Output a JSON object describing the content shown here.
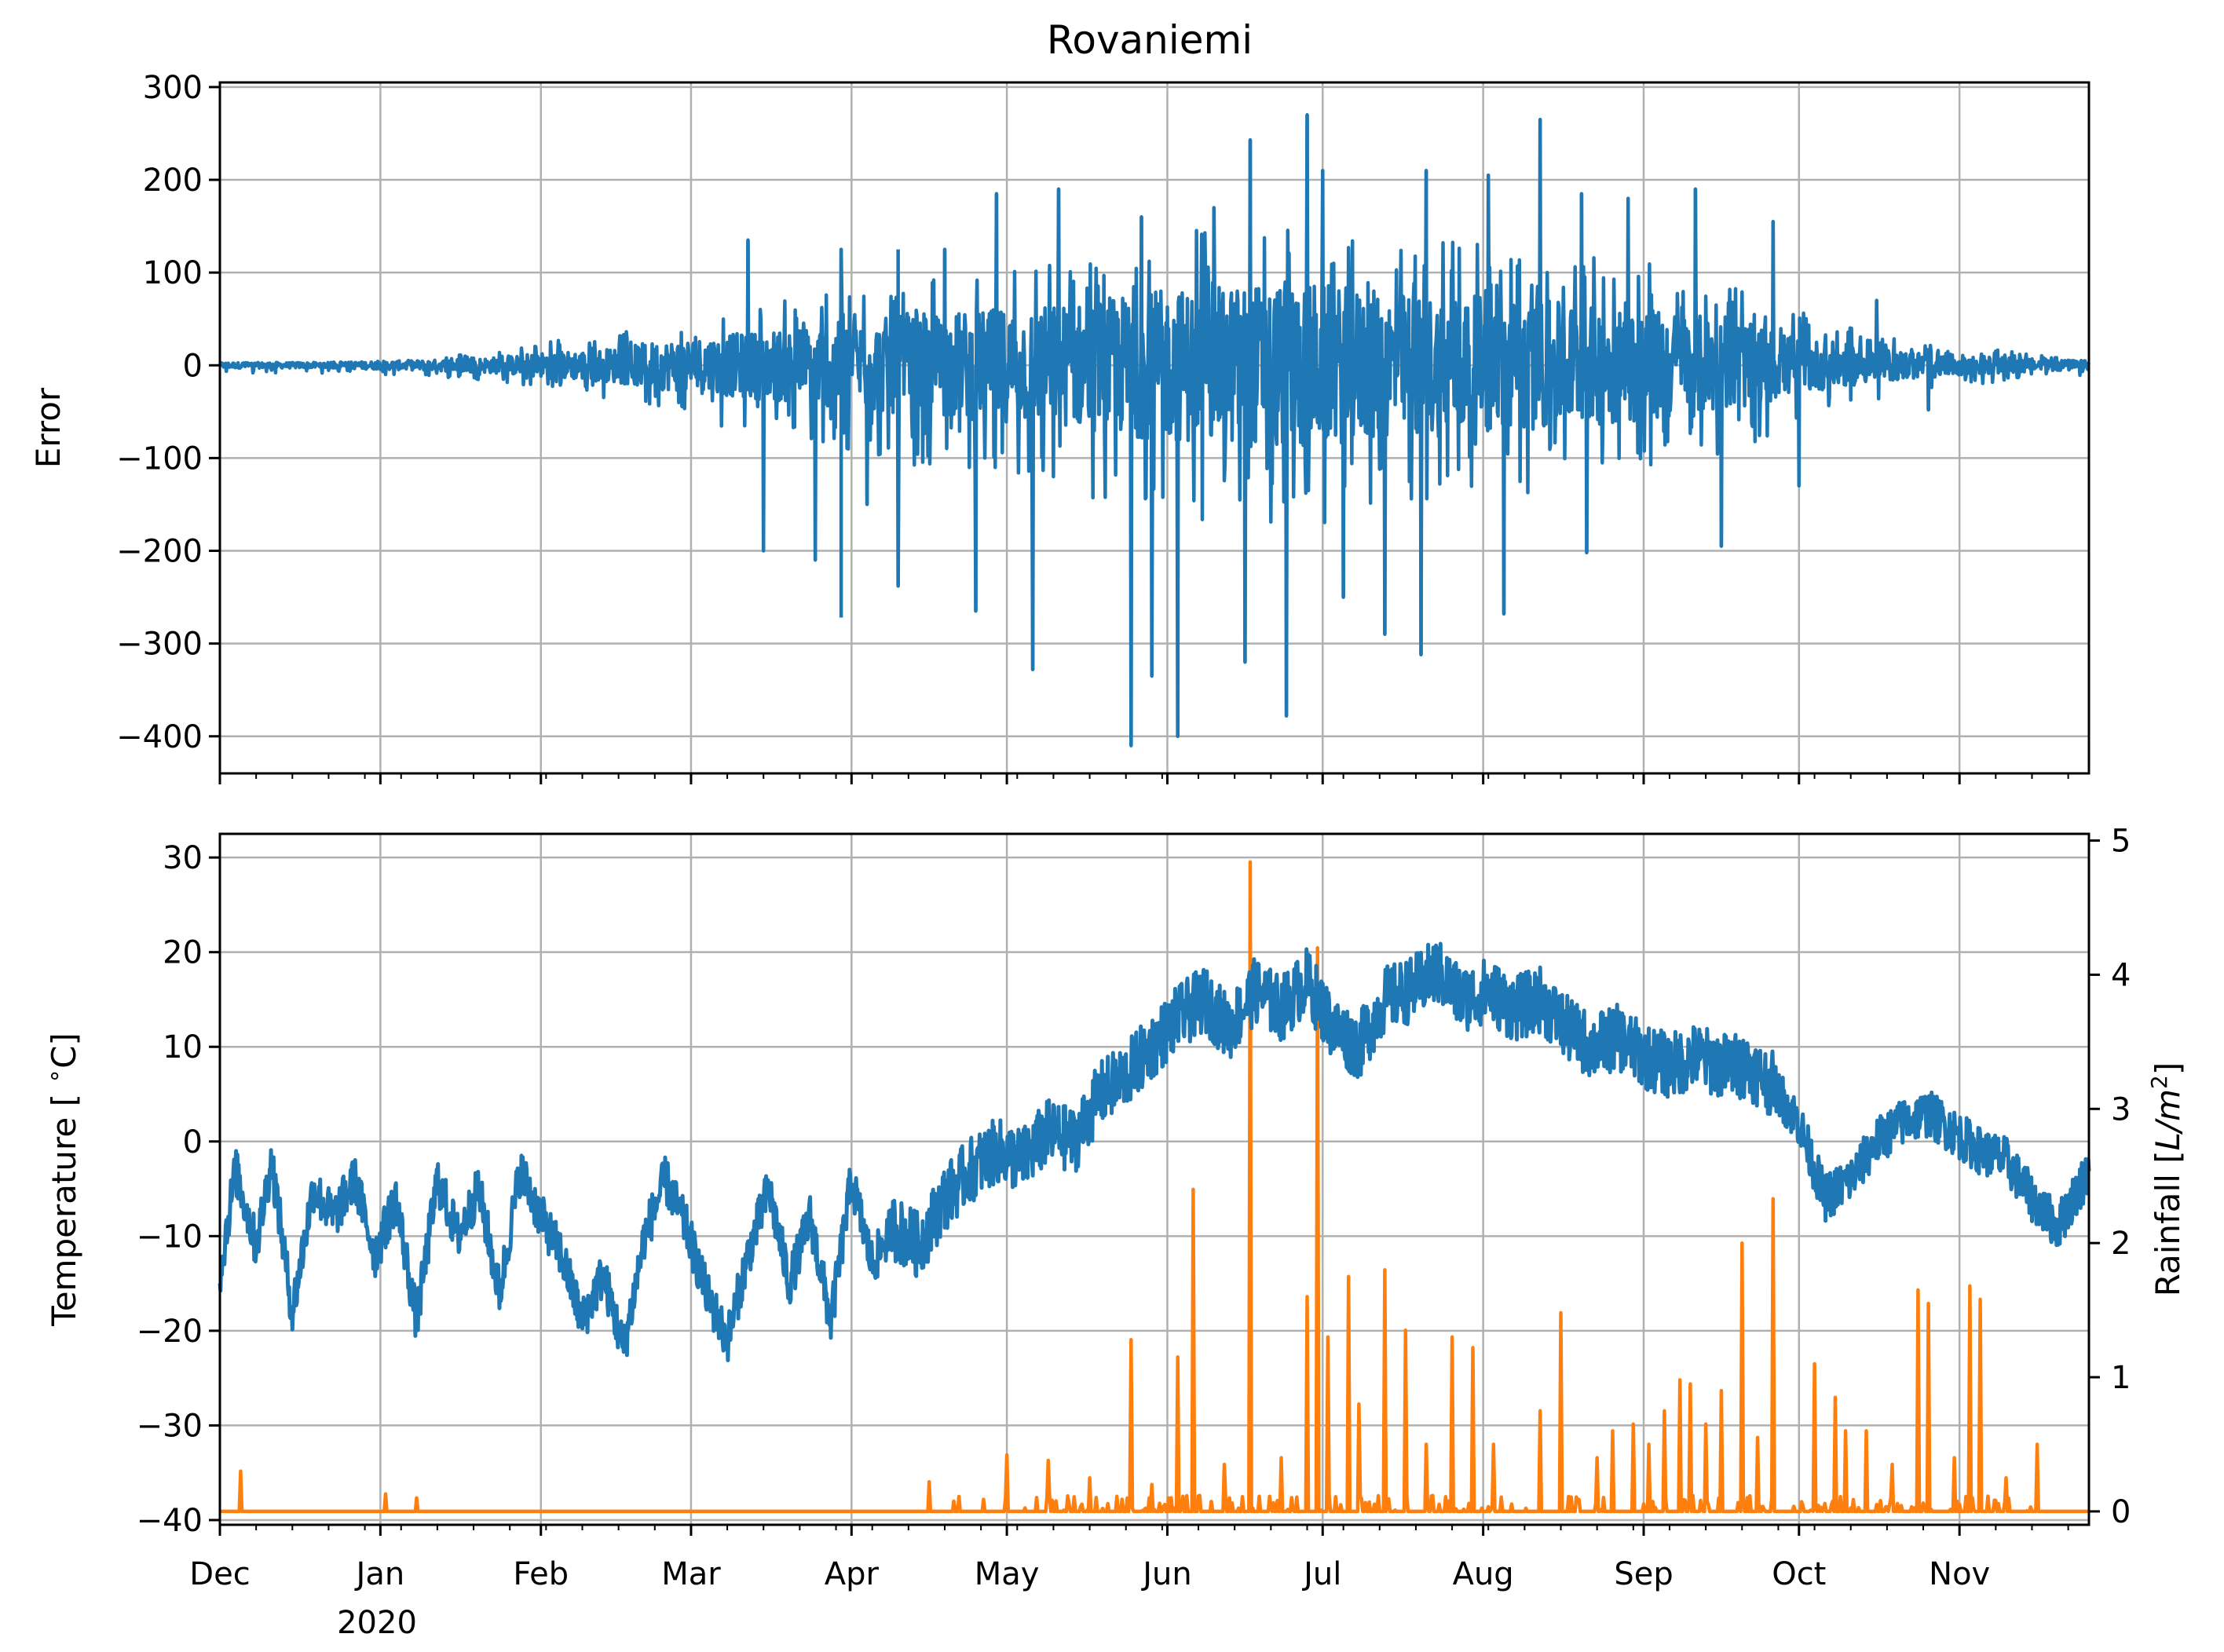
{
  "figure": {
    "title": "Rovaniemi",
    "x_tick_labels": [
      "Dec",
      "Jan",
      "Feb",
      "Mar",
      "Apr",
      "May",
      "Jun",
      "Jul",
      "Aug",
      "Sep",
      "Oct",
      "Nov"
    ],
    "x_year_label": "2020"
  },
  "chart_data": [
    {
      "type": "line",
      "title": "Rovaniemi",
      "xlabel": "",
      "ylabel": "Error",
      "ylim": [
        -440,
        305
      ],
      "yticks": [
        300,
        200,
        100,
        0,
        -100,
        -200,
        -300,
        -400
      ],
      "ytick_labels": [
        "300",
        "200",
        "100",
        "0",
        "−100",
        "−200",
        "−300",
        "−400"
      ],
      "x_range_days": [
        0,
        361
      ],
      "grid": true,
      "series": [
        {
          "name": "Error",
          "color": "#1f77b4",
          "envelope": {
            "day": [
              0,
              20,
              40,
              55,
              62,
              75,
              85,
              100,
              120,
              135,
              150,
              165,
              175,
              185,
              195,
              205,
              210,
              215,
              225,
              235,
              245,
              255,
              265,
              275,
              285,
              295,
              305,
              320,
              335,
              350,
              361
            ],
            "upper": [
              3,
              3,
              8,
              15,
              25,
              30,
              45,
              55,
              80,
              95,
              100,
              110,
              130,
              140,
              150,
              160,
              165,
              150,
              140,
              135,
              130,
              125,
              115,
              110,
              95,
              80,
              55,
              30,
              20,
              12,
              8
            ],
            "lower": [
              -8,
              -8,
              -12,
              -18,
              -25,
              -35,
              -50,
              -70,
              -90,
              -105,
              -120,
              -135,
              -150,
              -160,
              -165,
              -170,
              -170,
              -160,
              -150,
              -145,
              -140,
              -130,
              -120,
              -115,
              -105,
              -85,
              -55,
              -35,
              -22,
              -14,
              -10
            ]
          },
          "spikes": [
            {
              "day": 105,
              "value": -200
            },
            {
              "day": 102,
              "value": 135
            },
            {
              "day": 115,
              "value": -210
            },
            {
              "day": 120,
              "value": -272
            },
            {
              "day": 120,
              "value": 125
            },
            {
              "day": 125,
              "value": -150
            },
            {
              "day": 131,
              "value": 125
            },
            {
              "day": 131,
              "value": -238
            },
            {
              "day": 140,
              "value": 125
            },
            {
              "day": 146,
              "value": -265
            },
            {
              "day": 150,
              "value": 185
            },
            {
              "day": 157,
              "value": -328
            },
            {
              "day": 162,
              "value": 190
            },
            {
              "day": 176,
              "value": -410
            },
            {
              "day": 178,
              "value": 160
            },
            {
              "day": 180,
              "value": -335
            },
            {
              "day": 185,
              "value": -400
            },
            {
              "day": 192,
              "value": 170
            },
            {
              "day": 198,
              "value": -320
            },
            {
              "day": 199,
              "value": 243
            },
            {
              "day": 206,
              "value": -378
            },
            {
              "day": 210,
              "value": 270
            },
            {
              "day": 213,
              "value": 210
            },
            {
              "day": 217,
              "value": -250
            },
            {
              "day": 225,
              "value": -290
            },
            {
              "day": 232,
              "value": -312
            },
            {
              "day": 233,
              "value": 210
            },
            {
              "day": 245,
              "value": 205
            },
            {
              "day": 248,
              "value": -268
            },
            {
              "day": 255,
              "value": 265
            },
            {
              "day": 263,
              "value": 185
            },
            {
              "day": 264,
              "value": -202
            },
            {
              "day": 272,
              "value": 180
            },
            {
              "day": 285,
              "value": 190
            },
            {
              "day": 290,
              "value": -195
            },
            {
              "day": 300,
              "value": 155
            },
            {
              "day": 305,
              "value": -130
            },
            {
              "day": 320,
              "value": 70
            },
            {
              "day": 330,
              "value": -48
            }
          ]
        }
      ]
    },
    {
      "type": "line",
      "title": "",
      "xlabel": "",
      "ylabel": "Temperature [$^\\circ$C]",
      "y2label": "Rainfall [$L/m^2$]",
      "ylim": [
        -40.5,
        32.5
      ],
      "yticks": [
        30,
        20,
        10,
        0,
        -10,
        -20,
        -30,
        -40
      ],
      "ytick_labels": [
        "30",
        "20",
        "10",
        "0",
        "−10",
        "−20",
        "−30",
        "−40"
      ],
      "y2lim": [
        -0.1,
        5.05
      ],
      "y2ticks": [
        5,
        4,
        3,
        2,
        1,
        0
      ],
      "y2tick_labels": [
        "5",
        "4",
        "3",
        "2",
        "1",
        "0"
      ],
      "x_range_days": [
        0,
        361
      ],
      "grid": true,
      "series": [
        {
          "name": "Temperature",
          "axis": "left",
          "color": "#1f77b4",
          "day": [
            0,
            3,
            7,
            10,
            14,
            18,
            22,
            26,
            30,
            34,
            38,
            42,
            46,
            50,
            54,
            58,
            62,
            66,
            70,
            74,
            78,
            82,
            86,
            90,
            94,
            98,
            102,
            106,
            110,
            114,
            118,
            122,
            126,
            130,
            135,
            140,
            145,
            150,
            155,
            160,
            165,
            170,
            175,
            180,
            185,
            190,
            195,
            200,
            205,
            210,
            215,
            220,
            225,
            230,
            235,
            240,
            245,
            250,
            255,
            260,
            265,
            270,
            275,
            280,
            285,
            290,
            295,
            300,
            305,
            310,
            315,
            320,
            325,
            330,
            335,
            340,
            345,
            350,
            355,
            361
          ],
          "values": [
            -14,
            -3,
            -11,
            -2,
            -18,
            -5,
            -8,
            -4,
            -12,
            -6,
            -19,
            -4,
            -10,
            -5,
            -16,
            -3,
            -8,
            -12,
            -19,
            -14,
            -22,
            -10,
            -4,
            -9,
            -16,
            -21,
            -12,
            -5,
            -15,
            -8,
            -19,
            -4,
            -13,
            -9,
            -11,
            -6,
            -3,
            -1,
            -2,
            1,
            0,
            5,
            7,
            10,
            13,
            15,
            12,
            16,
            14,
            17,
            12,
            10,
            15,
            16,
            18,
            15,
            16,
            14,
            15,
            12,
            10,
            11,
            9,
            8,
            9,
            8,
            8,
            6,
            2,
            -6,
            -4,
            0,
            2,
            3,
            1,
            -1,
            -2,
            -6,
            -9,
            -3
          ]
        },
        {
          "name": "Rainfall",
          "axis": "right",
          "color": "#ff7f0e",
          "events": [
            {
              "day": 4,
              "value": 0.3
            },
            {
              "day": 32,
              "value": 0.13
            },
            {
              "day": 38,
              "value": 0.1
            },
            {
              "day": 137,
              "value": 0.22
            },
            {
              "day": 152,
              "value": 0.42
            },
            {
              "day": 160,
              "value": 0.38
            },
            {
              "day": 168,
              "value": 0.25
            },
            {
              "day": 176,
              "value": 1.28
            },
            {
              "day": 180,
              "value": 0.2
            },
            {
              "day": 185,
              "value": 1.15
            },
            {
              "day": 188,
              "value": 2.4
            },
            {
              "day": 194,
              "value": 0.35
            },
            {
              "day": 199,
              "value": 4.84
            },
            {
              "day": 205,
              "value": 0.4
            },
            {
              "day": 210,
              "value": 1.6
            },
            {
              "day": 212,
              "value": 4.2
            },
            {
              "day": 214,
              "value": 1.3
            },
            {
              "day": 218,
              "value": 1.75
            },
            {
              "day": 220,
              "value": 0.8
            },
            {
              "day": 225,
              "value": 1.8
            },
            {
              "day": 229,
              "value": 1.35
            },
            {
              "day": 233,
              "value": 0.5
            },
            {
              "day": 238,
              "value": 1.3
            },
            {
              "day": 242,
              "value": 1.22
            },
            {
              "day": 246,
              "value": 0.5
            },
            {
              "day": 255,
              "value": 0.75
            },
            {
              "day": 259,
              "value": 1.48
            },
            {
              "day": 266,
              "value": 0.4
            },
            {
              "day": 269,
              "value": 0.6
            },
            {
              "day": 273,
              "value": 0.65
            },
            {
              "day": 276,
              "value": 0.5
            },
            {
              "day": 279,
              "value": 0.75
            },
            {
              "day": 282,
              "value": 0.98
            },
            {
              "day": 284,
              "value": 0.95
            },
            {
              "day": 287,
              "value": 0.65
            },
            {
              "day": 290,
              "value": 0.9
            },
            {
              "day": 294,
              "value": 2.0
            },
            {
              "day": 297,
              "value": 0.55
            },
            {
              "day": 300,
              "value": 2.33
            },
            {
              "day": 308,
              "value": 1.1
            },
            {
              "day": 312,
              "value": 0.85
            },
            {
              "day": 314,
              "value": 0.6
            },
            {
              "day": 318,
              "value": 0.6
            },
            {
              "day": 323,
              "value": 0.35
            },
            {
              "day": 328,
              "value": 1.65
            },
            {
              "day": 330,
              "value": 1.55
            },
            {
              "day": 335,
              "value": 0.4
            },
            {
              "day": 338,
              "value": 1.68
            },
            {
              "day": 340,
              "value": 1.58
            },
            {
              "day": 345,
              "value": 0.25
            },
            {
              "day": 351,
              "value": 0.5
            }
          ]
        }
      ]
    }
  ]
}
